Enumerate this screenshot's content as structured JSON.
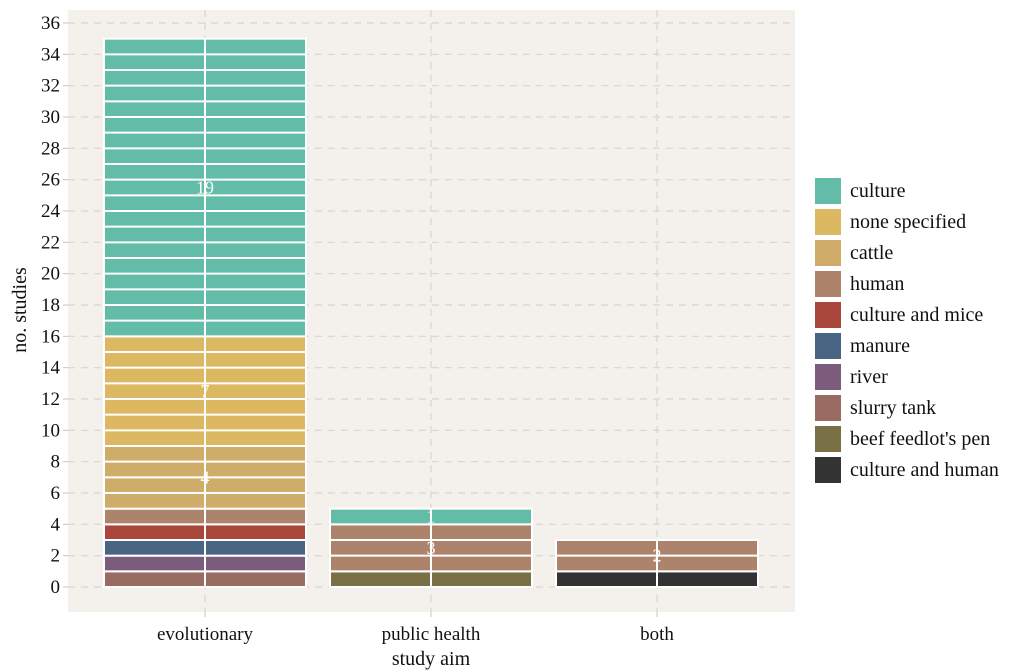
{
  "chart_data": {
    "type": "bar",
    "stacked": true,
    "categories": [
      "evolutionary",
      "public health",
      "both"
    ],
    "xlabel": "study aim",
    "ylabel": "no. studies",
    "ylim": [
      0,
      36
    ],
    "yticks": [
      0,
      2,
      4,
      6,
      8,
      10,
      12,
      14,
      16,
      18,
      20,
      22,
      24,
      26,
      28,
      30,
      32,
      34,
      36
    ],
    "grid": true,
    "legend_position": "right",
    "series": [
      {
        "name": "culture and human",
        "color": "#333333",
        "values": [
          0,
          0,
          1
        ]
      },
      {
        "name": "beef feedlot's pen",
        "color": "#7a7046",
        "values": [
          0,
          1,
          0
        ]
      },
      {
        "name": "slurry tank",
        "color": "#9a6b62",
        "values": [
          1,
          0,
          0
        ]
      },
      {
        "name": "river",
        "color": "#7b5c7c",
        "values": [
          1,
          0,
          0
        ]
      },
      {
        "name": "manure",
        "color": "#4a6583",
        "values": [
          1,
          0,
          0
        ]
      },
      {
        "name": "culture and mice",
        "color": "#a9473c",
        "values": [
          1,
          0,
          0
        ]
      },
      {
        "name": "human",
        "color": "#ad836b",
        "values": [
          1,
          3,
          2
        ]
      },
      {
        "name": "cattle",
        "color": "#d0ac6b",
        "values": [
          4,
          0,
          0
        ]
      },
      {
        "name": "none specified",
        "color": "#dcb862",
        "values": [
          7,
          0,
          0
        ]
      },
      {
        "name": "culture",
        "color": "#62bca8",
        "values": [
          19,
          1,
          0
        ]
      }
    ],
    "data_labels": [
      {
        "category": "evolutionary",
        "series": "culture",
        "text": "19"
      },
      {
        "category": "evolutionary",
        "series": "none specified",
        "text": "7"
      },
      {
        "category": "evolutionary",
        "series": "cattle",
        "text": "4"
      },
      {
        "category": "public health",
        "series": "culture",
        "text": "1"
      },
      {
        "category": "public health",
        "series": "human",
        "text": "3"
      },
      {
        "category": "both",
        "series": "human",
        "text": "2"
      }
    ],
    "legend_order": [
      "culture",
      "none specified",
      "cattle",
      "human",
      "culture and mice",
      "manure",
      "river",
      "slurry tank",
      "beef feedlot's pen",
      "culture and human"
    ],
    "colors": {
      "panel_background": "#f4f0eb",
      "gridline": "#d8d4cf"
    }
  }
}
